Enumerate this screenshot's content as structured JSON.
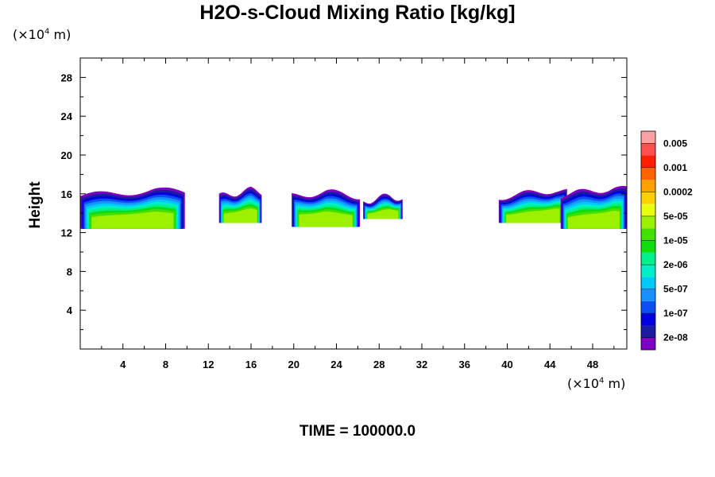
{
  "chart_data": {
    "type": "heatmap",
    "title": "H2O-s-Cloud Mixing Ratio [kg/kg]",
    "ylabel": "Height",
    "xunit_prefix": "(×10",
    "xunit_exp": "4",
    "xunit_suffix": " m)",
    "yunit_prefix": "(×10",
    "yunit_exp": "4",
    "yunit_suffix": " m)",
    "xlim": [
      0,
      51.2
    ],
    "ylim": [
      0,
      30
    ],
    "xticks": [
      4,
      8,
      12,
      16,
      20,
      24,
      28,
      32,
      36,
      40,
      44,
      48
    ],
    "yticks": [
      4,
      8,
      12,
      16,
      20,
      24,
      28
    ],
    "colorbar": {
      "colors": [
        "#7f00c4",
        "#1c1ca0",
        "#0000e0",
        "#0a50f0",
        "#1890ff",
        "#00c8f8",
        "#00eec8",
        "#00f08c",
        "#10dc10",
        "#46e000",
        "#9cf000",
        "#e8ff10",
        "#ffd000",
        "#ffa000",
        "#ff6400",
        "#ff1e00",
        "#ff5050",
        "#ffa0a0"
      ],
      "labels": [
        "2e-08",
        "1e-07",
        "5e-07",
        "2e-06",
        "1e-05",
        "5e-05",
        "0.0002",
        "0.001",
        "0.005"
      ]
    },
    "cloud_cells": [
      {
        "x": [
          0.0,
          9.8
        ],
        "base": 12.4,
        "top": 16.4,
        "peak": 7.0
      },
      {
        "x": [
          13.0,
          17.0
        ],
        "base": 13.0,
        "top": 16.4,
        "peak": 16.0
      },
      {
        "x": [
          19.8,
          26.2
        ],
        "base": 12.6,
        "top": 16.2,
        "peak": 23.0
      },
      {
        "x": [
          26.5,
          30.2
        ],
        "base": 13.4,
        "top": 15.8,
        "peak": 29.0
      },
      {
        "x": [
          39.2,
          45.6
        ],
        "base": 13.0,
        "top": 16.4,
        "peak": 44.5
      },
      {
        "x": [
          45.0,
          51.2
        ],
        "base": 12.4,
        "top": 16.6,
        "peak": 50.0
      }
    ]
  },
  "footer": {
    "time_label": "TIME = 100000.0"
  }
}
